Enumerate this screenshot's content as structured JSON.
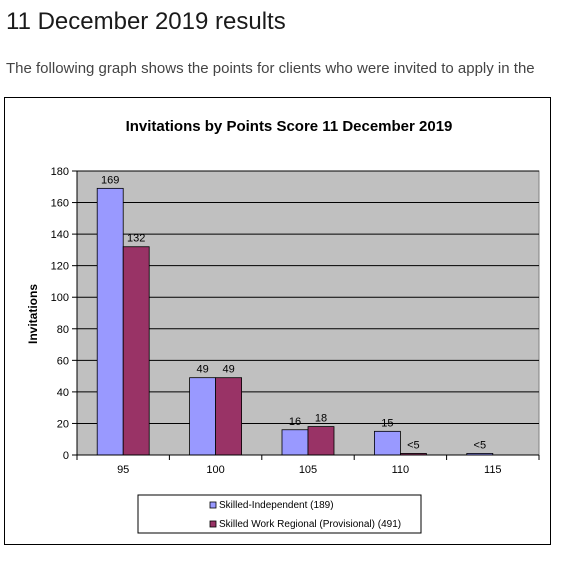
{
  "page": {
    "heading": "11 December 2019 results",
    "intro": "The following graph shows the points for clients who were invited to apply in the"
  },
  "colors": {
    "series_1": "#9999ff",
    "series_2": "#993366",
    "plot_background": "#c0c0c0"
  },
  "chart_data": {
    "type": "bar",
    "title": "Invitations by Points Score 11 December 2019",
    "xlabel": "",
    "ylabel": "Invitations",
    "categories": [
      "95",
      "100",
      "105",
      "110",
      "115"
    ],
    "ylim": [
      0,
      180
    ],
    "yticks": [
      0,
      20,
      40,
      60,
      80,
      100,
      120,
      140,
      160,
      180
    ],
    "grid": true,
    "legend_position": "bottom",
    "series": [
      {
        "name": "Skilled-Independent (189)",
        "values": [
          169,
          49,
          16,
          15,
          1
        ],
        "labels": [
          "169",
          "49",
          "16",
          "15",
          "<5"
        ]
      },
      {
        "name": "Skilled Work Regional (Provisional) (491)",
        "values": [
          132,
          49,
          18,
          1,
          null
        ],
        "labels": [
          "132",
          "49",
          "18",
          "<5",
          ""
        ]
      }
    ]
  }
}
